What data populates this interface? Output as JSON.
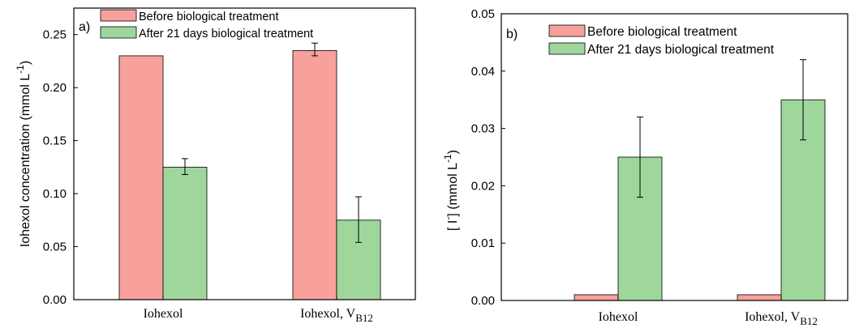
{
  "colors": {
    "before": "#F7A09C",
    "after": "#9FD69C",
    "axis": "#000000"
  },
  "chart_data": [
    {
      "type": "bar",
      "panel_label": "a)",
      "categories": [
        "Iohexol",
        "Iohexol, V"
      ],
      "category_subscripts": [
        "",
        "B12"
      ],
      "ylabel": "Iohexol concentration (mmol L",
      "ylabel_sup": "-1",
      "ylabel_close": ")",
      "ylim": [
        0,
        0.275
      ],
      "yticks": [
        0.0,
        0.05,
        0.1,
        0.15,
        0.2,
        0.25
      ],
      "ytick_labels": [
        "0.00",
        "0.05",
        "0.10",
        "0.15",
        "0.20",
        "0.25"
      ],
      "legend_position": "top-left",
      "series": [
        {
          "name": "Before biological treatment",
          "values": [
            0.23,
            0.235
          ],
          "errors_upper": [
            0.0,
            0.007
          ],
          "errors_lower": [
            0.0,
            0.005
          ]
        },
        {
          "name": "After 21 days biological treatment",
          "values": [
            0.125,
            0.075
          ],
          "errors_upper": [
            0.008,
            0.022
          ],
          "errors_lower": [
            0.007,
            0.021
          ]
        }
      ]
    },
    {
      "type": "bar",
      "panel_label": "b)",
      "categories": [
        "Iohexol",
        "Iohexol, V"
      ],
      "category_subscripts": [
        "",
        "B12"
      ],
      "ylabel": "[ I",
      "ylabel_sup": "-",
      "ylabel_close": "] (mmol L",
      "ylabel_sup2": "-1",
      "ylabel_close2": ")",
      "ylim": [
        0,
        0.05
      ],
      "yticks": [
        0.0,
        0.01,
        0.02,
        0.03,
        0.04,
        0.05
      ],
      "ytick_labels": [
        "0.00",
        "0.01",
        "0.02",
        "0.03",
        "0.04",
        "0.05"
      ],
      "legend_position": "top-left",
      "series": [
        {
          "name": "Before biological treatment",
          "values": [
            0.001,
            0.001
          ],
          "errors_upper": [
            0.0,
            0.0
          ],
          "errors_lower": [
            0.0,
            0.0
          ]
        },
        {
          "name": "After 21 days biological treatment",
          "values": [
            0.025,
            0.035
          ],
          "errors_upper": [
            0.007,
            0.007
          ],
          "errors_lower": [
            0.007,
            0.007
          ]
        }
      ]
    }
  ]
}
